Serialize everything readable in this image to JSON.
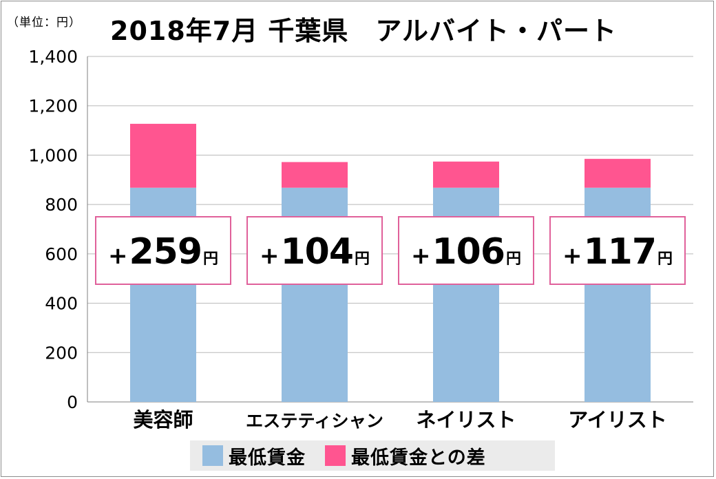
{
  "unit_label": "（単位：円）",
  "chart_data": {
    "type": "bar",
    "stacked": true,
    "title": "2018年7月 千葉県　アルバイト・パート",
    "categories": [
      "美容師",
      "エステティシャン",
      "ネイリスト",
      "アイリスト"
    ],
    "series": [
      {
        "name": "最低賃金",
        "color": "#95bde0",
        "values": [
          868,
          868,
          868,
          868
        ]
      },
      {
        "name": "最低賃金との差",
        "color": "#ff5590",
        "values": [
          259,
          104,
          106,
          117
        ]
      }
    ],
    "difference_labels": [
      {
        "plus": "+",
        "value": "259",
        "unit": "円"
      },
      {
        "plus": "+",
        "value": "104",
        "unit": "円"
      },
      {
        "plus": "+",
        "value": "106",
        "unit": "円"
      },
      {
        "plus": "+",
        "value": "117",
        "unit": "円"
      }
    ],
    "yticks": [
      "0",
      "200",
      "400",
      "600",
      "800",
      "1,000",
      "1,200",
      "1,400"
    ],
    "ylim": [
      0,
      1400
    ],
    "grid": true,
    "legend": "bottom"
  }
}
